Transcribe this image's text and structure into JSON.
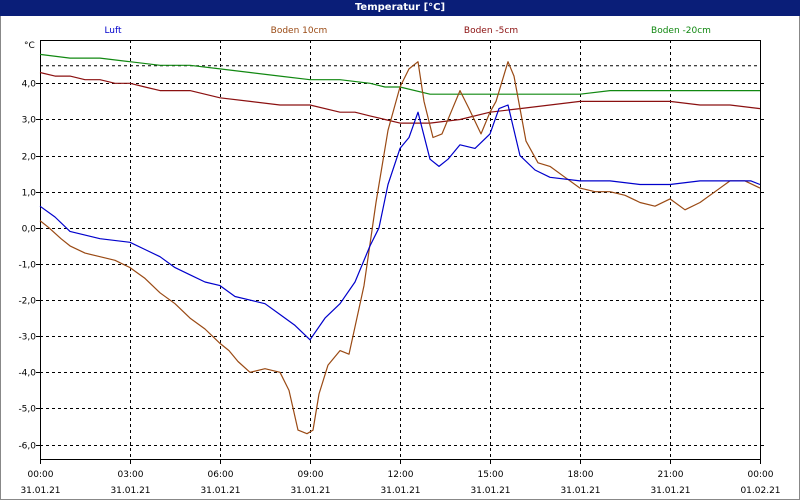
{
  "window": {
    "title": "Temperatur [°C]"
  },
  "colors": {
    "Luft": "#0000cc",
    "Boden 10cm": "#9a4a14",
    "Boden -5cm": "#8b1010",
    "Boden -20cm": "#118811",
    "grid": "#000000",
    "titlebar": "#0a1e78"
  },
  "chart_data": {
    "type": "line",
    "title": "Temperatur [°C]",
    "unit_label": "°C",
    "x_unit": "hours from 31.01.21 00:00",
    "xlim": [
      0,
      24
    ],
    "ylim": [
      -6.4,
      5.2
    ],
    "grid": true,
    "legend_placement": "top",
    "y_ticks": [
      {
        "v": 4,
        "label": "4,0"
      },
      {
        "v": 3,
        "label": "3,0"
      },
      {
        "v": 2,
        "label": "2,0"
      },
      {
        "v": 1,
        "label": "1,0"
      },
      {
        "v": 0,
        "label": "0,0"
      },
      {
        "v": -1,
        "label": "-1,0"
      },
      {
        "v": -2,
        "label": "-2,0"
      },
      {
        "v": -3,
        "label": "-3,0"
      },
      {
        "v": -4,
        "label": "-4,0"
      },
      {
        "v": -5,
        "label": "-5,0"
      },
      {
        "v": -6,
        "label": "-6,0"
      }
    ],
    "x_ticks": [
      {
        "h": 0,
        "time": "00:00",
        "date": "31.01.21"
      },
      {
        "h": 3,
        "time": "03:00",
        "date": "31.01.21"
      },
      {
        "h": 6,
        "time": "06:00",
        "date": "31.01.21"
      },
      {
        "h": 9,
        "time": "09:00",
        "date": "31.01.21"
      },
      {
        "h": 12,
        "time": "12:00",
        "date": "31.01.21"
      },
      {
        "h": 15,
        "time": "15:00",
        "date": "31.01.21"
      },
      {
        "h": 18,
        "time": "18:00",
        "date": "31.01.21"
      },
      {
        "h": 21,
        "time": "21:00",
        "date": "31.01.21"
      },
      {
        "h": 24,
        "time": "00:00",
        "date": "01.02.21"
      }
    ],
    "series": [
      {
        "name": "Luft",
        "x": [
          0,
          0.5,
          1,
          1.5,
          2,
          3,
          3.5,
          4,
          4.5,
          5,
          5.5,
          6,
          6.5,
          7,
          7.5,
          8,
          8.5,
          9,
          9.5,
          10,
          10.5,
          11,
          11.3,
          11.6,
          12,
          12.3,
          12.6,
          13,
          13.3,
          13.6,
          14,
          14.5,
          15,
          15.3,
          15.6,
          16,
          16.5,
          17,
          18,
          19,
          20,
          21,
          22,
          23,
          23.7,
          24
        ],
        "y": [
          0.6,
          0.3,
          -0.1,
          -0.2,
          -0.3,
          -0.4,
          -0.6,
          -0.8,
          -1.1,
          -1.3,
          -1.5,
          -1.6,
          -1.9,
          -2.0,
          -2.1,
          -2.4,
          -2.7,
          -3.1,
          -2.5,
          -2.1,
          -1.5,
          -0.5,
          0.0,
          1.2,
          2.2,
          2.5,
          3.2,
          1.9,
          1.7,
          1.9,
          2.3,
          2.2,
          2.6,
          3.3,
          3.4,
          2.0,
          1.6,
          1.4,
          1.3,
          1.3,
          1.2,
          1.2,
          1.3,
          1.3,
          1.3,
          1.2
        ]
      },
      {
        "name": "Boden 10cm",
        "x": [
          0,
          0.3,
          0.7,
          1,
          1.5,
          2,
          2.5,
          3,
          3.5,
          4,
          4.5,
          5,
          5.5,
          6,
          6.3,
          6.6,
          7,
          7.5,
          8,
          8.3,
          8.6,
          8.9,
          9.1,
          9.3,
          9.6,
          10,
          10.3,
          10.8,
          11.2,
          11.6,
          12,
          12.3,
          12.6,
          12.8,
          13.1,
          13.4,
          13.7,
          14,
          14.3,
          14.7,
          15,
          15.2,
          15.6,
          15.8,
          16.2,
          16.6,
          17,
          17.5,
          18,
          18.5,
          19,
          19.5,
          20,
          20.5,
          21,
          21.5,
          22,
          22.5,
          23,
          23.5,
          24
        ],
        "y": [
          0.2,
          0.0,
          -0.3,
          -0.5,
          -0.7,
          -0.8,
          -0.9,
          -1.1,
          -1.4,
          -1.8,
          -2.1,
          -2.5,
          -2.8,
          -3.2,
          -3.4,
          -3.7,
          -4.0,
          -3.9,
          -4.0,
          -4.5,
          -5.6,
          -5.7,
          -5.6,
          -4.6,
          -3.8,
          -3.4,
          -3.5,
          -1.6,
          0.7,
          2.7,
          3.9,
          4.4,
          4.6,
          3.5,
          2.5,
          2.6,
          3.2,
          3.8,
          3.3,
          2.6,
          3.2,
          3.5,
          4.6,
          4.2,
          2.4,
          1.8,
          1.7,
          1.4,
          1.1,
          1.0,
          1.0,
          0.9,
          0.7,
          0.6,
          0.8,
          0.5,
          0.7,
          1.0,
          1.3,
          1.3,
          1.1
        ]
      },
      {
        "name": "Boden -5cm",
        "x": [
          0,
          0.5,
          1,
          1.5,
          2,
          2.5,
          3,
          3.5,
          4,
          5,
          6,
          7,
          8,
          9,
          10,
          10.5,
          11,
          11.5,
          12,
          13,
          14,
          15,
          16,
          17,
          18,
          19,
          20,
          21,
          22,
          23,
          24
        ],
        "y": [
          4.3,
          4.2,
          4.2,
          4.1,
          4.1,
          4.0,
          4.0,
          3.9,
          3.8,
          3.8,
          3.6,
          3.5,
          3.4,
          3.4,
          3.2,
          3.2,
          3.1,
          3.0,
          2.9,
          2.9,
          3.0,
          3.2,
          3.3,
          3.4,
          3.5,
          3.5,
          3.5,
          3.5,
          3.4,
          3.4,
          3.3
        ]
      },
      {
        "name": "Boden -20cm",
        "x": [
          0,
          1,
          2,
          3,
          4,
          5,
          6,
          7,
          8,
          9,
          10,
          11,
          11.5,
          12,
          13,
          14,
          15,
          16,
          17,
          18,
          19,
          20,
          21,
          22,
          23,
          24
        ],
        "y": [
          4.8,
          4.7,
          4.7,
          4.6,
          4.5,
          4.5,
          4.4,
          4.3,
          4.2,
          4.1,
          4.1,
          4.0,
          3.9,
          3.9,
          3.7,
          3.7,
          3.7,
          3.7,
          3.7,
          3.7,
          3.8,
          3.8,
          3.8,
          3.8,
          3.8,
          3.8
        ]
      }
    ]
  }
}
